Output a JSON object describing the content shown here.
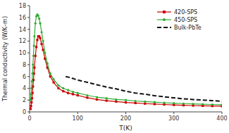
{
  "chart_data": {
    "type": "line",
    "xlabel": "T(K)",
    "ylabel": "Thermal conductivity (W/K–m)",
    "xlim": [
      0,
      400
    ],
    "ylim": [
      0,
      18
    ],
    "xticks": [
      0,
      100,
      200,
      300,
      400
    ],
    "yticks": [
      0,
      2,
      4,
      6,
      8,
      10,
      12,
      14,
      16,
      18
    ],
    "legend": "upper right",
    "grid": false,
    "series": [
      {
        "name": "420-SPS",
        "color": "#cc0000",
        "marker": "square",
        "line_style": "solid",
        "x": [
          2,
          3,
          4,
          5,
          6,
          7,
          8,
          9,
          10,
          12,
          14,
          16,
          18,
          20,
          22,
          25,
          28,
          32,
          37,
          43,
          50,
          60,
          70,
          80,
          90,
          100,
          120,
          140,
          160,
          180,
          200,
          220,
          240,
          260,
          280,
          300,
          320,
          340,
          360,
          380,
          400
        ],
        "values": [
          0.5,
          1.0,
          1.6,
          2.3,
          3.2,
          4.3,
          5.4,
          6.5,
          7.5,
          9.5,
          11.0,
          12.2,
          12.8,
          12.8,
          12.5,
          11.5,
          10.5,
          9.0,
          7.5,
          6.0,
          5.0,
          4.0,
          3.5,
          3.2,
          3.0,
          2.8,
          2.4,
          2.1,
          1.9,
          1.75,
          1.6,
          1.5,
          1.4,
          1.32,
          1.25,
          1.18,
          1.12,
          1.07,
          1.03,
          1.0,
          0.97
        ]
      },
      {
        "name": "450-SPS",
        "color": "#33aa33",
        "marker": "circle",
        "line_style": "solid",
        "x": [
          2,
          3,
          4,
          5,
          6,
          7,
          8,
          9,
          10,
          12,
          14,
          16,
          18,
          20,
          22,
          25,
          28,
          32,
          37,
          43,
          50,
          60,
          70,
          80,
          90,
          100,
          120,
          140,
          160,
          180,
          200,
          220,
          240,
          260,
          280,
          300,
          320,
          340,
          360,
          380,
          400
        ],
        "values": [
          2.0,
          3.0,
          4.0,
          5.2,
          6.5,
          8.0,
          9.5,
          11.2,
          12.8,
          15.0,
          16.2,
          16.5,
          16.3,
          15.8,
          15.0,
          13.5,
          12.0,
          10.0,
          8.2,
          6.5,
          5.5,
          4.5,
          4.0,
          3.7,
          3.4,
          3.2,
          2.8,
          2.5,
          2.3,
          2.1,
          2.0,
          1.85,
          1.75,
          1.65,
          1.55,
          1.47,
          1.4,
          1.35,
          1.3,
          1.25,
          1.2
        ]
      },
      {
        "name": "Bulk-PbTe",
        "color": "#111111",
        "line_style": "dashed",
        "x": [
          75,
          85,
          100,
          120,
          140,
          160,
          180,
          200,
          220,
          240,
          260,
          280,
          300,
          320,
          340,
          360,
          380,
          400
        ],
        "values": [
          6.0,
          5.8,
          5.4,
          5.0,
          4.6,
          4.2,
          3.9,
          3.5,
          3.2,
          3.0,
          2.75,
          2.55,
          2.38,
          2.22,
          2.1,
          2.0,
          1.9,
          1.8
        ]
      }
    ]
  }
}
